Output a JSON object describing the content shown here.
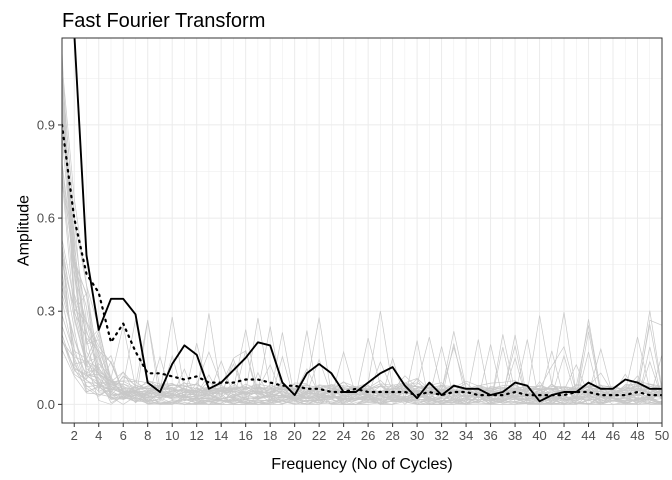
{
  "chart_data": {
    "type": "line",
    "title": "Fast Fourier Transform",
    "xlabel": "Frequency (No of Cycles)",
    "ylabel": "Amplitude",
    "xlim": [
      1,
      50
    ],
    "ylim": [
      -0.06,
      1.18
    ],
    "grid": true,
    "legend": "none",
    "x_ticks": [
      2,
      4,
      6,
      8,
      10,
      12,
      14,
      16,
      18,
      20,
      22,
      24,
      26,
      28,
      30,
      32,
      34,
      36,
      38,
      40,
      42,
      44,
      46,
      48,
      50
    ],
    "y_ticks": [
      0.0,
      0.3,
      0.6,
      0.9
    ],
    "y_tick_labels": [
      "0.0",
      "0.3",
      "0.6",
      "0.9"
    ],
    "colors": {
      "background_series": "#c8c8c8",
      "highlight": "#000000",
      "grid": "#ebebeb",
      "panel_border": "#333333"
    },
    "series": [
      {
        "style": "solid",
        "x": [
          1,
          2,
          3,
          4,
          5,
          6,
          7,
          8,
          9,
          10,
          11,
          12,
          13,
          14,
          15,
          16,
          17,
          18,
          19,
          20,
          21,
          22,
          23,
          24,
          25,
          26,
          27,
          28,
          29,
          30,
          31,
          32,
          33,
          34,
          35,
          36,
          37,
          38,
          39,
          40,
          41,
          42,
          43,
          44,
          45,
          46,
          47,
          48,
          49,
          50
        ],
        "values": [
          1.25,
          1.2,
          0.48,
          0.24,
          0.34,
          0.34,
          0.29,
          0.07,
          0.04,
          0.13,
          0.19,
          0.16,
          0.05,
          0.07,
          0.11,
          0.15,
          0.2,
          0.19,
          0.07,
          0.03,
          0.1,
          0.13,
          0.1,
          0.04,
          0.04,
          0.07,
          0.1,
          0.12,
          0.06,
          0.02,
          0.07,
          0.03,
          0.06,
          0.05,
          0.05,
          0.03,
          0.04,
          0.07,
          0.06,
          0.01,
          0.03,
          0.04,
          0.04,
          0.07,
          0.05,
          0.05,
          0.08,
          0.07,
          0.05,
          0.05
        ]
      },
      {
        "style": "dotted",
        "x": [
          1,
          2,
          3,
          4,
          5,
          6,
          7,
          8,
          9,
          10,
          11,
          12,
          13,
          14,
          15,
          16,
          17,
          18,
          19,
          20,
          21,
          22,
          23,
          24,
          25,
          26,
          27,
          28,
          29,
          30,
          31,
          32,
          33,
          34,
          35,
          36,
          37,
          38,
          39,
          40,
          41,
          42,
          43,
          44,
          45,
          46,
          47,
          48,
          49,
          50
        ],
        "values": [
          0.9,
          0.6,
          0.42,
          0.36,
          0.2,
          0.26,
          0.17,
          0.1,
          0.1,
          0.09,
          0.08,
          0.09,
          0.07,
          0.07,
          0.07,
          0.08,
          0.08,
          0.07,
          0.06,
          0.06,
          0.05,
          0.05,
          0.04,
          0.04,
          0.05,
          0.04,
          0.04,
          0.04,
          0.04,
          0.03,
          0.04,
          0.03,
          0.04,
          0.04,
          0.03,
          0.03,
          0.03,
          0.04,
          0.03,
          0.03,
          0.03,
          0.03,
          0.04,
          0.04,
          0.03,
          0.03,
          0.03,
          0.04,
          0.03,
          0.03
        ]
      }
    ]
  }
}
